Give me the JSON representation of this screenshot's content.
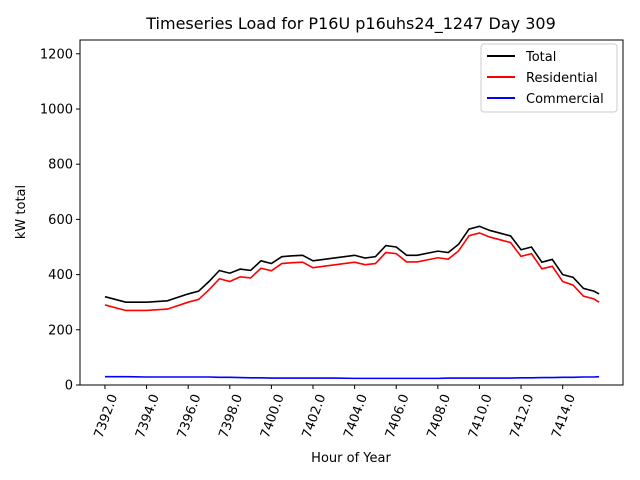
{
  "chart_data": {
    "type": "line",
    "title": "Timeseries Load for P16U p16uhs24_1247  Day 309",
    "xlabel": "Hour of Year",
    "ylabel": "kW total",
    "xlim": [
      7390.8,
      7416.9
    ],
    "ylim": [
      0,
      1250
    ],
    "xticks": [
      7392,
      7394,
      7396,
      7398,
      7400,
      7402,
      7404,
      7406,
      7408,
      7410,
      7412,
      7414
    ],
    "xtick_labels": [
      "7392.0",
      "7394.0",
      "7396.0",
      "7398.0",
      "7400.0",
      "7402.0",
      "7404.0",
      "7406.0",
      "7408.0",
      "7410.0",
      "7412.0",
      "7414.0"
    ],
    "yticks": [
      0,
      200,
      400,
      600,
      800,
      1000,
      1200
    ],
    "ytick_labels": [
      "0",
      "200",
      "400",
      "600",
      "800",
      "1000",
      "1200"
    ],
    "legend_position": "top-right",
    "x": [
      7392,
      7393,
      7394,
      7395,
      7396,
      7396.5,
      7397,
      7397.5,
      7398,
      7398.5,
      7399,
      7399.5,
      7400,
      7400.5,
      7401,
      7401.5,
      7402,
      7403,
      7404,
      7404.5,
      7405,
      7405.5,
      7406,
      7406.5,
      7407,
      7408,
      7408.5,
      7409,
      7409.5,
      7410,
      7410.5,
      7411,
      7411.5,
      7412,
      7412.5,
      7413,
      7413.5,
      7414,
      7414.5,
      7415,
      7415.5,
      7415.75
    ],
    "series": [
      {
        "name": "Total",
        "color": "#000000",
        "values": [
          320,
          300,
          300,
          305,
          330,
          340,
          375,
          415,
          405,
          420,
          415,
          450,
          440,
          465,
          468,
          470,
          450,
          460,
          470,
          460,
          465,
          505,
          500,
          470,
          470,
          485,
          480,
          510,
          565,
          575,
          560,
          550,
          540,
          490,
          500,
          445,
          455,
          400,
          390,
          350,
          340,
          330
        ]
      },
      {
        "name": "Residential",
        "color": "#ff0000",
        "values": [
          290,
          270,
          270,
          275,
          300,
          310,
          345,
          385,
          375,
          392,
          388,
          423,
          414,
          440,
          443,
          445,
          425,
          435,
          445,
          436,
          440,
          480,
          476,
          446,
          446,
          461,
          456,
          486,
          541,
          551,
          536,
          526,
          516,
          466,
          476,
          421,
          430,
          375,
          362,
          322,
          312,
          300
        ]
      },
      {
        "name": "Commercial",
        "color": "#0000ff",
        "values": [
          30,
          30,
          29,
          29,
          29,
          29,
          29,
          28,
          28,
          27,
          26,
          26,
          25,
          25,
          25,
          25,
          25,
          25,
          24,
          24,
          24,
          24,
          24,
          24,
          24,
          24,
          25,
          25,
          25,
          25,
          25,
          25,
          25,
          26,
          26,
          27,
          27,
          28,
          28,
          29,
          29,
          30
        ]
      }
    ]
  }
}
